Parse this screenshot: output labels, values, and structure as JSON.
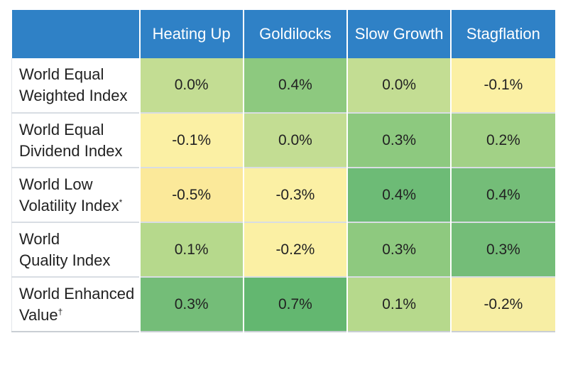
{
  "chart_data": {
    "type": "heatmap",
    "columns": [
      "Heating Up",
      "Goldilocks",
      "Slow Growth",
      "Stagflation"
    ],
    "rows": [
      {
        "label_lines": [
          "World Equal",
          "Weighted Index"
        ],
        "mark": "",
        "values": [
          "0.0%",
          "0.4%",
          "0.0%",
          "-0.1%"
        ]
      },
      {
        "label_lines": [
          "World Equal",
          "Dividend Index"
        ],
        "mark": "",
        "values": [
          "-0.1%",
          "0.0%",
          "0.3%",
          "0.2%"
        ]
      },
      {
        "label_lines": [
          "World Low",
          "Volatility Index"
        ],
        "mark": "*",
        "values": [
          "-0.5%",
          "-0.3%",
          "0.4%",
          "0.4%"
        ]
      },
      {
        "label_lines": [
          "World",
          "Quality Index"
        ],
        "mark": "",
        "values": [
          "0.1%",
          "-0.2%",
          "0.3%",
          "0.3%"
        ]
      },
      {
        "label_lines": [
          "World Enhanced",
          "Value"
        ],
        "mark": "†",
        "values": [
          "0.3%",
          "0.7%",
          "0.1%",
          "-0.2%"
        ]
      }
    ],
    "color_scale": {
      "low": "#fbf0a4",
      "mid": "#c3dd93",
      "high": "#6dbb76"
    },
    "cell_colors": [
      [
        "#c3dd93",
        "#8dc97f",
        "#c3dd93",
        "#fbf0a4"
      ],
      [
        "#fbf0a4",
        "#c3dd93",
        "#8dc97f",
        "#a2d186"
      ],
      [
        "#fbe99a",
        "#fbf0a4",
        "#6dbb76",
        "#74bd78"
      ],
      [
        "#b6d98c",
        "#fbf0a4",
        "#8ec97f",
        "#74bd78"
      ],
      [
        "#74bd78",
        "#63b770",
        "#b6d98c",
        "#f7eea4"
      ]
    ],
    "header_color": "#2f81c6"
  }
}
